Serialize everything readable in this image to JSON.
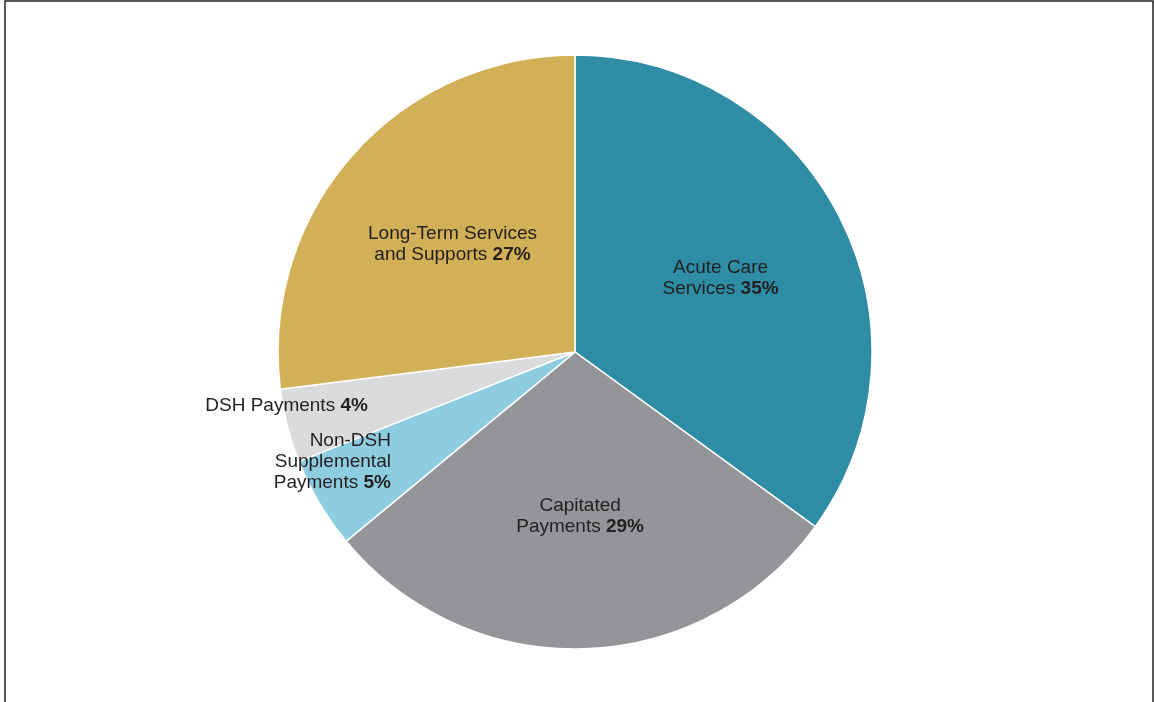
{
  "chart_data": {
    "type": "pie",
    "categories": [
      "Acute Care\nServices",
      "Capitated\nPayments",
      "Non-DSH\nSupplemental\nPayments",
      "DSH Payments",
      "Long-Term Services\nand Supports"
    ],
    "values": [
      35,
      29,
      5,
      4,
      27
    ],
    "value_labels": [
      "35%",
      "29%",
      "5%",
      "4%",
      "27%"
    ],
    "colors": [
      "#2e8ca4",
      "#939598",
      "#8ecde0",
      "#d9dbdc",
      "#d1b057"
    ]
  }
}
